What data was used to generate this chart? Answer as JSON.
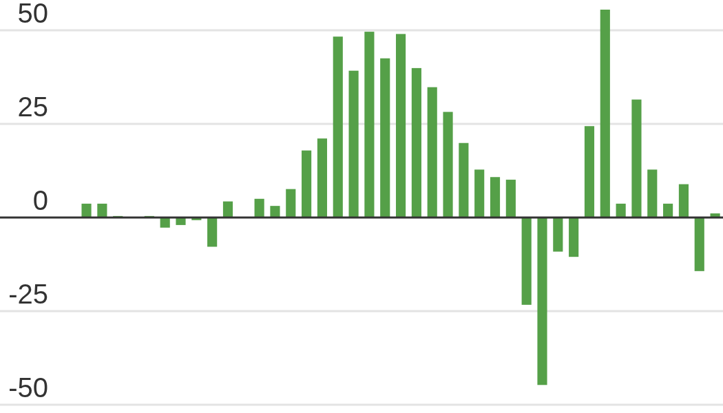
{
  "chart_data": {
    "type": "bar",
    "categories": [
      null,
      null,
      null,
      null,
      null,
      null,
      null,
      null,
      null,
      null,
      null,
      null,
      null,
      null,
      null,
      null,
      null,
      null,
      null,
      null,
      null,
      null,
      null,
      null,
      null,
      null,
      null,
      null,
      null,
      null,
      null,
      null,
      null,
      null,
      null,
      null,
      null,
      null,
      null,
      null,
      null,
      null,
      null,
      null,
      null,
      null
    ],
    "values": [
      null,
      null,
      null,
      null,
      null,
      3.7,
      3.7,
      0.4,
      null,
      0.4,
      -2.7,
      -2.0,
      -0.7,
      -7.8,
      4.3,
      null,
      5.0,
      3.1,
      7.6,
      17.9,
      21.1,
      48.3,
      39.2,
      49.6,
      42.5,
      49.0,
      39.9,
      34.8,
      28.2,
      19.9,
      12.8,
      10.8,
      10.1,
      -23.3,
      -44.7,
      -9.1,
      -10.5,
      24.4,
      55.5,
      3.7,
      31.5,
      12.8,
      3.7,
      8.9,
      -14.3,
      1.1
    ],
    "color": "#55a048",
    "ylim": [
      -52,
      55.5
    ],
    "yticks": [
      -50,
      -25,
      0,
      25,
      50
    ],
    "grid": "y",
    "tick_labels": "y"
  }
}
